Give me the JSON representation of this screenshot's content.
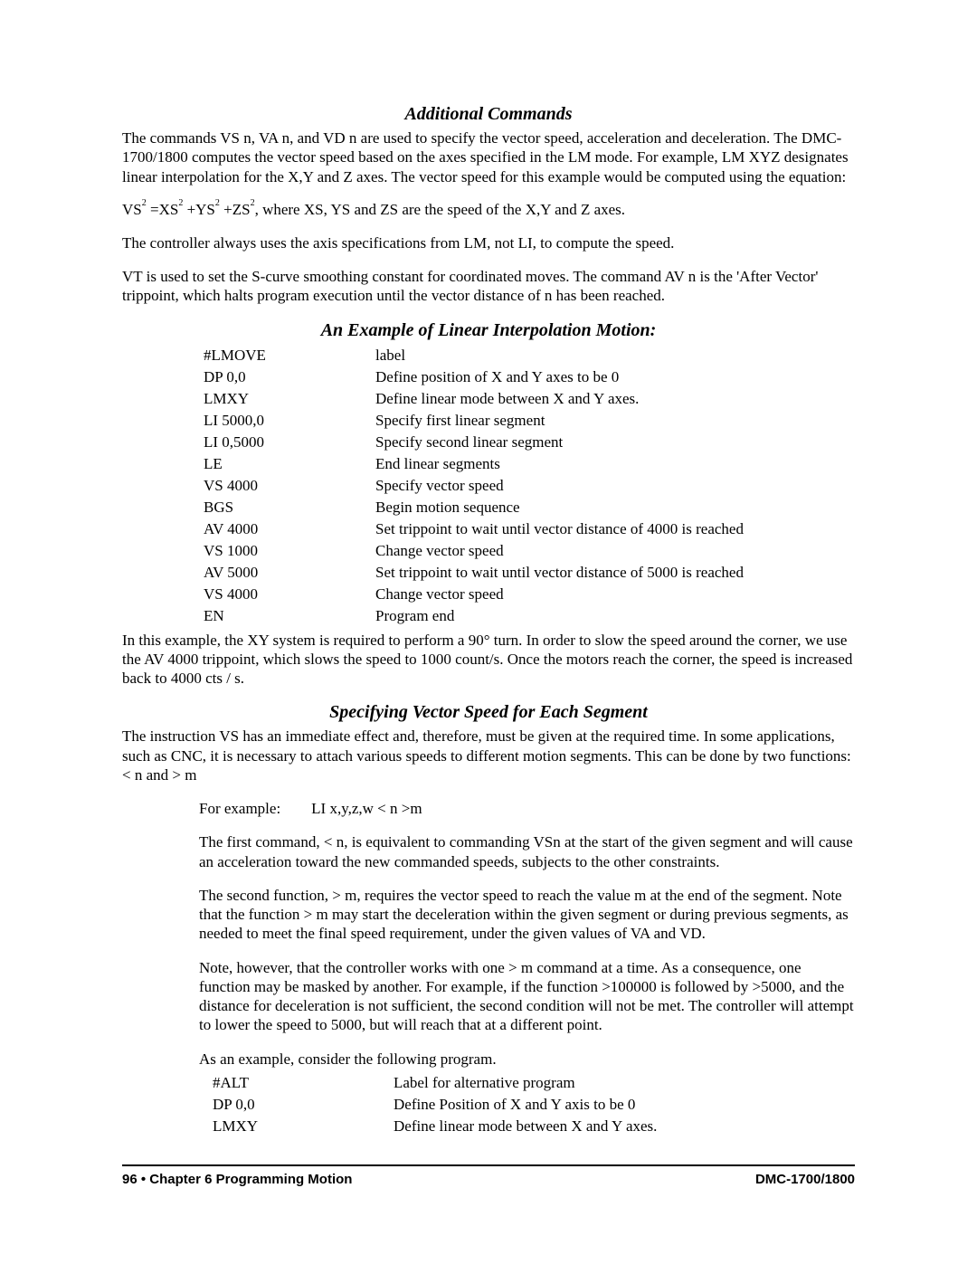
{
  "sections": {
    "s1": {
      "heading": "Additional Commands",
      "p1": "The commands VS n, VA n, and VD n are used to specify the vector speed, acceleration and deceleration.  The DMC-1700/1800 computes the vector speed based on the axes specified in the LM mode.  For example, LM XYZ designates linear interpolation for the X,Y and Z axes.  The vector speed for this example would be computed using the equation:",
      "eq_tail": ", where XS, YS and ZS are the speed of the X,Y and Z axes.",
      "p2": "The controller always uses the axis specifications from LM, not LI, to compute the speed.",
      "p3": "VT is used to set the S-curve smoothing constant for coordinated moves.  The command AV n is the 'After Vector' trippoint, which halts program execution until the vector distance of n has been reached."
    },
    "s2": {
      "heading": "An Example of Linear Interpolation Motion:",
      "rows": [
        {
          "cmd": "#LMOVE",
          "desc": "label"
        },
        {
          "cmd": "DP 0,0",
          "desc": "Define position of X and Y axes to be 0"
        },
        {
          "cmd": "LMXY",
          "desc": "Define linear mode between X and Y axes."
        },
        {
          "cmd": "LI 5000,0",
          "desc": "Specify first linear segment"
        },
        {
          "cmd": "LI 0,5000",
          "desc": "Specify second linear segment"
        },
        {
          "cmd": "LE",
          "desc": "End linear segments"
        },
        {
          "cmd": "VS 4000",
          "desc": "Specify vector speed"
        },
        {
          "cmd": "BGS",
          "desc": "Begin motion sequence"
        },
        {
          "cmd": "AV 4000",
          "desc": "Set trippoint to wait until vector distance of 4000 is reached"
        },
        {
          "cmd": "VS 1000",
          "desc": "Change vector speed"
        },
        {
          "cmd": "AV 5000",
          "desc": "Set trippoint to wait until vector distance of 5000 is reached"
        },
        {
          "cmd": "VS 4000",
          "desc": "Change vector speed"
        },
        {
          "cmd": "EN",
          "desc": "Program end"
        }
      ],
      "p1": "In this example, the XY system is required to perform a 90° turn.  In order to slow the speed around the corner, we use the AV 4000 trippoint, which slows the speed to 1000 count/s.  Once the motors reach the corner, the speed is increased back to 4000 cts / s."
    },
    "s3": {
      "heading": "Specifying Vector Speed for Each Segment",
      "p1": "The instruction VS has an immediate effect and, therefore, must be given at the required time.  In some applications, such as CNC, it is necessary to attach various speeds to different motion segments.  This can be done by two functions:  < n  and  > m",
      "ex": "For example:        LI x,y,z,w < n >m",
      "p2": "The first command, < n, is equivalent to commanding VSn at the start of the given segment and will cause an acceleration toward the new commanded speeds, subjects to the other constraints.",
      "p3": "The second function, > m, requires the vector speed to reach the value m at the end of the segment.  Note that the function > m may start the deceleration within the given segment or during previous segments, as needed to meet the final speed requirement, under the given values of VA and VD.",
      "p4": "Note, however, that the controller works with one > m command at a time.  As a consequence, one function may be masked by another.  For example, if the function >100000 is followed by >5000, and the distance for deceleration is not sufficient, the second condition will not be met.  The controller will attempt to lower the speed to 5000, but will reach that at a different point.",
      "p5": "As an example, consider the following program.",
      "rows": [
        {
          "cmd": "#ALT",
          "desc": "Label for alternative program"
        },
        {
          "cmd": "DP 0,0",
          "desc": "Define Position of X and Y axis to be 0"
        },
        {
          "cmd": "LMXY",
          "desc": "Define linear mode between X and Y axes."
        }
      ]
    },
    "footer": {
      "left": "96 • Chapter 6  Programming Motion",
      "right": "DMC-1700/1800"
    }
  }
}
